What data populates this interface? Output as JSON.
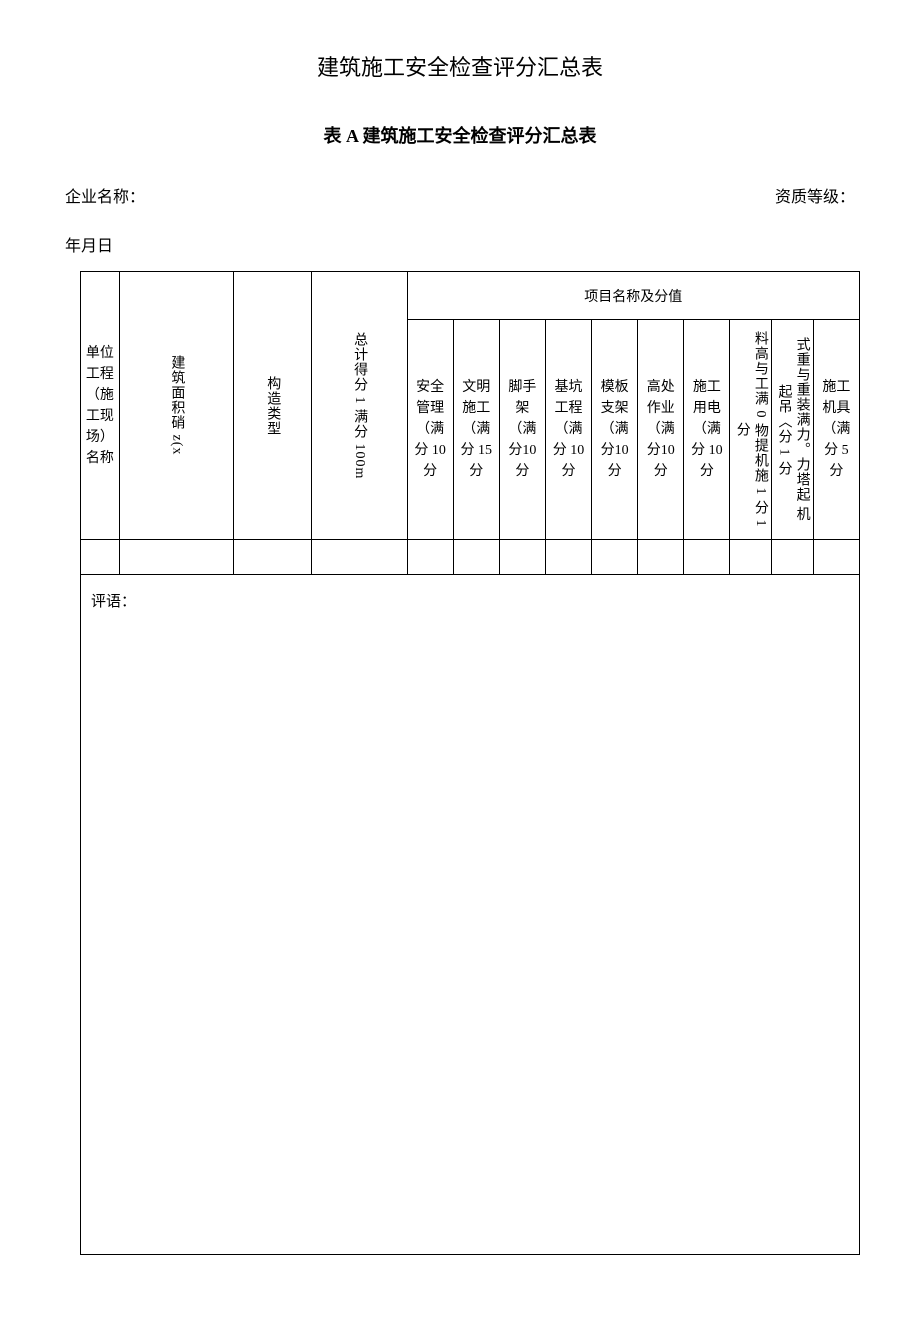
{
  "doc": {
    "title_main": "建筑施工安全检查评分汇总表",
    "title_sub": "表 A 建筑施工安全检查评分汇总表",
    "company_label": "企业名称：",
    "qualification_label": "资质等级：",
    "date_label": "年月日",
    "comment_label": "评语："
  },
  "table": {
    "group_header": "项目名称及分值",
    "cols": {
      "c1": "单位工程（施工现场）名称",
      "c2": "建筑面积硝 z(x",
      "c3": "构造类型",
      "c4": "总计得分 1 满分 100m",
      "c5": "安全管理（满分 10分",
      "c6": "文明施工（满分 15分",
      "c7": "脚手架（满分10分",
      "c8": "基坑工程（满分 10分",
      "c9": "模板支架（满分10分",
      "c10": "高处作业（满分10分",
      "c11": "施工用电（满分 10分",
      "c12": "料高与工满 0 物提机施 1 分 1 分",
      "c13": "式重与重装满力。力塔起 机起吊〈分 1 分",
      "c14": "施工机具（满分 5 分"
    },
    "styling": {
      "border_color": "#000000",
      "background": "#ffffff",
      "font_size_header": 14,
      "font_size_body": 14,
      "font_family": "SimSun",
      "row_heights": {
        "group_header": 48,
        "sub_headers": 220,
        "data_row": 35,
        "comment_row": 680
      }
    }
  }
}
